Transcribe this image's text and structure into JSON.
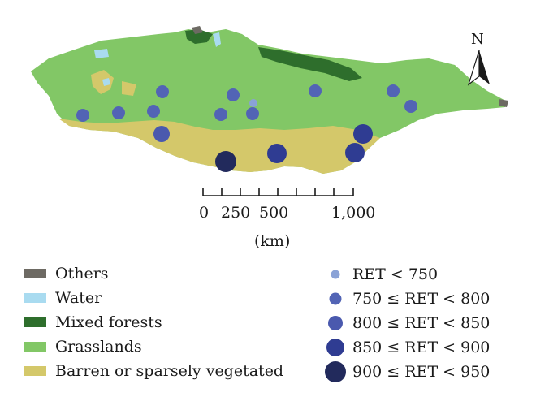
{
  "colors": {
    "others": "#6d6a63",
    "water": "#a9dbf0",
    "mixed_forests": "#2e6e2c",
    "grasslands": "#82c766",
    "barren": "#d4c86a",
    "ret_lt_750": "#8aa2d6",
    "ret_750_800": "#5264b5",
    "ret_800_850": "#4a59ae",
    "ret_850_900": "#2f3c92",
    "ret_900_950": "#222a5c"
  },
  "north_arrow": {
    "label": "N",
    "icon": "north-arrow-icon"
  },
  "scale_bar": {
    "labels": [
      "0",
      "250",
      "500",
      "1,000"
    ],
    "unit": "(km)"
  },
  "legend_landcover": [
    {
      "label": "Others",
      "color_key": "others"
    },
    {
      "label": "Water",
      "color_key": "water"
    },
    {
      "label": "Mixed forests",
      "color_key": "mixed_forests"
    },
    {
      "label": "Grasslands",
      "color_key": "grasslands"
    },
    {
      "label": "Barren or sparsely vegetated",
      "color_key": "barren"
    }
  ],
  "legend_ret": [
    {
      "label": "RET < 750",
      "color_key": "ret_lt_750",
      "size_class": 1
    },
    {
      "label": "750 ≤ RET < 800",
      "color_key": "ret_750_800",
      "size_class": 2
    },
    {
      "label": "800 ≤ RET < 850",
      "color_key": "ret_800_850",
      "size_class": 3
    },
    {
      "label": "850 ≤ RET < 900",
      "color_key": "ret_850_900",
      "size_class": 4
    },
    {
      "label": "900 ≤ RET < 950",
      "color_key": "ret_900_950",
      "size_class": 5
    }
  ]
}
